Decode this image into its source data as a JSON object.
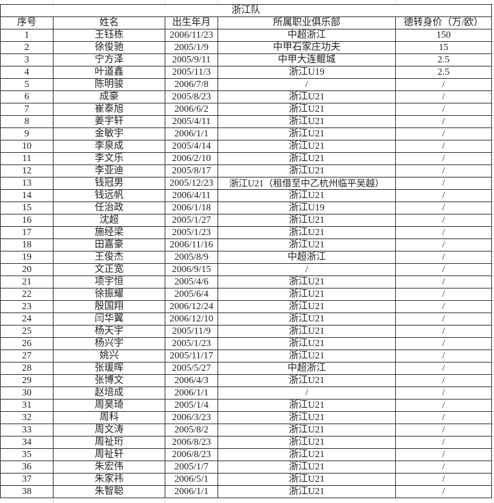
{
  "title": "浙江队",
  "headers": [
    "序号",
    "姓名",
    "出生年月",
    "所属职业俱乐部",
    "德转身价（万/欧）"
  ],
  "rows": [
    [
      "1",
      "王钰栋",
      "2006/11/23",
      "中超浙江",
      "150"
    ],
    [
      "2",
      "徐俊驰",
      "2005/1/9",
      "中甲石家庄功夫",
      "15"
    ],
    [
      "3",
      "宁方泽",
      "2005/9/11",
      "中甲大连鲲城",
      "2.5"
    ],
    [
      "4",
      "叶道鑫",
      "2005/11/3",
      "浙江U19",
      "2.5"
    ],
    [
      "5",
      "陈明骏",
      "2006/7/8",
      "/",
      "/"
    ],
    [
      "6",
      "成豪",
      "2005/8/23",
      "浙江U21",
      "/"
    ],
    [
      "7",
      "崔泰旭",
      "2006/6/2",
      "浙江U21",
      "/"
    ],
    [
      "8",
      "姜宇轩",
      "2005/4/11",
      "浙江U21",
      "/"
    ],
    [
      "9",
      "金敏宇",
      "2006/1/1",
      "浙江U21",
      "/"
    ],
    [
      "10",
      "李泉成",
      "2005/4/14",
      "浙江U21",
      "/"
    ],
    [
      "11",
      "李文乐",
      "2006/2/10",
      "浙江U21",
      "/"
    ],
    [
      "12",
      "李亚迪",
      "2005/8/17",
      "浙江U21",
      "/"
    ],
    [
      "13",
      "钱冠男",
      "2005/12/23",
      "浙江U21（租借至中乙杭州临平吴越）",
      "/"
    ],
    [
      "14",
      "钱远帆",
      "2006/4/11",
      "浙江U21",
      "/"
    ],
    [
      "15",
      "任治政",
      "2006/1/18",
      "浙江U19",
      "/"
    ],
    [
      "16",
      "沈超",
      "2005/1/27",
      "浙江U21",
      "/"
    ],
    [
      "17",
      "施经梁",
      "2005/1/23",
      "浙江U21",
      "/"
    ],
    [
      "18",
      "田嘉豪",
      "2006/11/16",
      "浙江U21",
      "/"
    ],
    [
      "19",
      "王俊杰",
      "2005/8/9",
      "中超浙江",
      "/"
    ],
    [
      "20",
      "文正宽",
      "2006/9/15",
      "/",
      "/"
    ],
    [
      "21",
      "项宇恒",
      "2005/4/6",
      "浙江U21",
      "/"
    ],
    [
      "22",
      "徐振耀",
      "2005/6/4",
      "浙江U21",
      "/"
    ],
    [
      "23",
      "殷国翔",
      "2006/12/24",
      "浙江U21",
      "/"
    ],
    [
      "24",
      "闫华翼",
      "2006/12/10",
      "浙江U21",
      "/"
    ],
    [
      "25",
      "杨天宇",
      "2005/11/9",
      "浙江U21",
      "/"
    ],
    [
      "26",
      "杨兴宇",
      "2005/1/23",
      "浙江U21",
      "/"
    ],
    [
      "27",
      "姚兴",
      "2005/11/17",
      "浙江U21",
      "/"
    ],
    [
      "28",
      "张瑗晖",
      "2005/5/27",
      "中超浙江",
      "/"
    ],
    [
      "29",
      "张博文",
      "2006/4/3",
      "浙江U21",
      "/"
    ],
    [
      "30",
      "赵培成",
      "2006/1/1",
      "/",
      "/"
    ],
    [
      "31",
      "周昊琦",
      "2005/1/4",
      "浙江U21",
      "/"
    ],
    [
      "32",
      "周科",
      "2006/3/23",
      "浙江U21",
      "/"
    ],
    [
      "33",
      "周文涛",
      "2005/8/2",
      "浙江U21",
      "/"
    ],
    [
      "34",
      "周祉珩",
      "2006/8/23",
      "浙江U21",
      "/"
    ],
    [
      "35",
      "周祉轩",
      "2006/8/23",
      "浙江U21",
      "/"
    ],
    [
      "36",
      "朱宏伟",
      "2005/1/7",
      "浙江U21",
      "/"
    ],
    [
      "37",
      "朱家祎",
      "2006/5/1",
      "浙江U21",
      "/"
    ],
    [
      "38",
      "朱智聪",
      "2006/1/1",
      "浙江U21",
      "/"
    ]
  ]
}
